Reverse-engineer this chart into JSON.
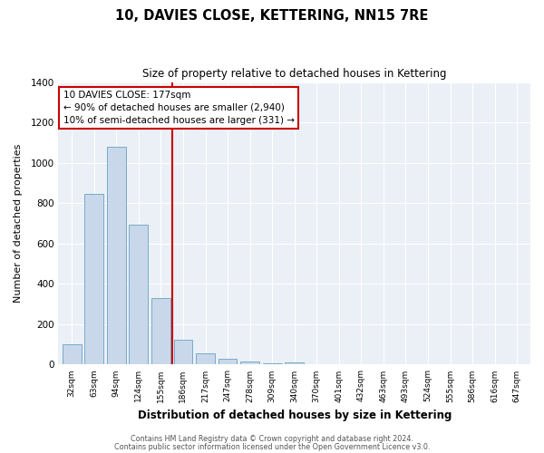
{
  "title": "10, DAVIES CLOSE, KETTERING, NN15 7RE",
  "subtitle": "Size of property relative to detached houses in Kettering",
  "xlabel": "Distribution of detached houses by size in Kettering",
  "ylabel": "Number of detached properties",
  "bar_labels": [
    "32sqm",
    "63sqm",
    "94sqm",
    "124sqm",
    "155sqm",
    "186sqm",
    "217sqm",
    "247sqm",
    "278sqm",
    "309sqm",
    "340sqm",
    "370sqm",
    "401sqm",
    "432sqm",
    "463sqm",
    "493sqm",
    "524sqm",
    "555sqm",
    "586sqm",
    "616sqm",
    "647sqm"
  ],
  "bar_values": [
    100,
    845,
    1080,
    695,
    330,
    125,
    57,
    30,
    15,
    8,
    10,
    0,
    0,
    0,
    0,
    0,
    0,
    0,
    0,
    0,
    0
  ],
  "bar_color": "#c8d8ea",
  "bar_edgecolor": "#7aaac8",
  "vline_x_index": 5,
  "vline_color": "#cc0000",
  "annotation_title": "10 DAVIES CLOSE: 177sqm",
  "annotation_line1": "← 90% of detached houses are smaller (2,940)",
  "annotation_line2": "10% of semi-detached houses are larger (331) →",
  "annotation_box_color": "#ffffff",
  "annotation_box_edgecolor": "#cc0000",
  "ylim": [
    0,
    1400
  ],
  "yticks": [
    0,
    200,
    400,
    600,
    800,
    1000,
    1200,
    1400
  ],
  "plot_bg_color": "#eaf0f6",
  "figure_bg_color": "#ffffff",
  "grid_color": "#ffffff",
  "footer1": "Contains HM Land Registry data © Crown copyright and database right 2024.",
  "footer2": "Contains public sector information licensed under the Open Government Licence v3.0."
}
